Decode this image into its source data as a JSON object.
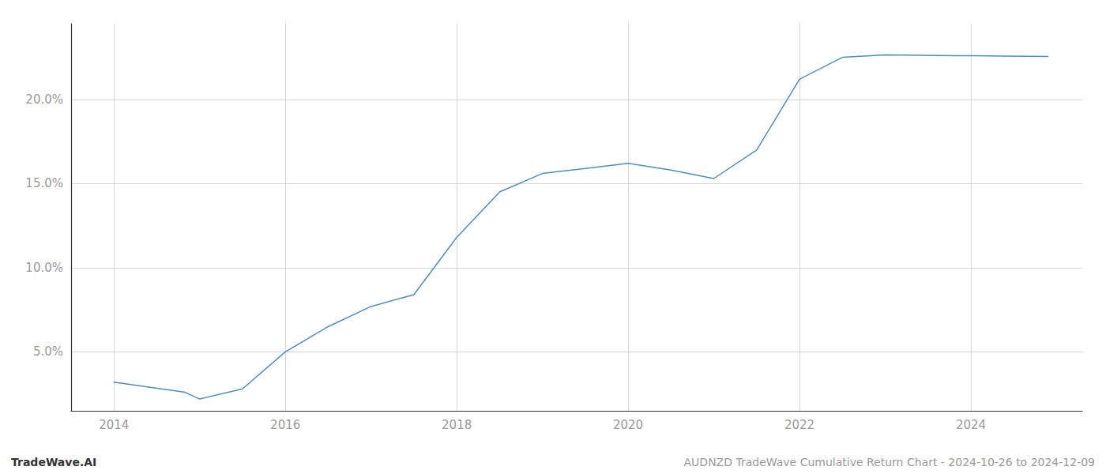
{
  "chart_data": {
    "type": "line",
    "x": [
      2014.0,
      2014.83,
      2015.0,
      2015.5,
      2016.0,
      2016.5,
      2017.0,
      2017.5,
      2018.0,
      2018.5,
      2019.0,
      2019.5,
      2020.0,
      2020.5,
      2021.0,
      2021.5,
      2022.0,
      2022.5,
      2023.0,
      2023.83,
      2024.0,
      2024.9
    ],
    "values": [
      3.2,
      2.6,
      2.2,
      2.8,
      5.0,
      6.5,
      7.7,
      8.4,
      11.8,
      14.5,
      15.6,
      15.9,
      16.2,
      15.8,
      15.3,
      17.0,
      21.2,
      22.5,
      22.65,
      22.6,
      22.6,
      22.55
    ],
    "color": "#4a90c4",
    "xlim": [
      2013.5,
      2025.3
    ],
    "ylim": [
      1.5,
      24.5
    ],
    "xticks": [
      2014,
      2016,
      2018,
      2020,
      2022,
      2024
    ],
    "yticks": [
      {
        "value": 5.0,
        "label": "5.0%"
      },
      {
        "value": 10.0,
        "label": "10.0%"
      },
      {
        "value": 15.0,
        "label": "15.0%"
      },
      {
        "value": 20.0,
        "label": "20.0%"
      }
    ],
    "grid": true,
    "annotations": [
      "TradeWave.AI",
      "AUDNZD TradeWave Cumulative Return Chart - 2024-10-26 to 2024-12-09"
    ]
  }
}
